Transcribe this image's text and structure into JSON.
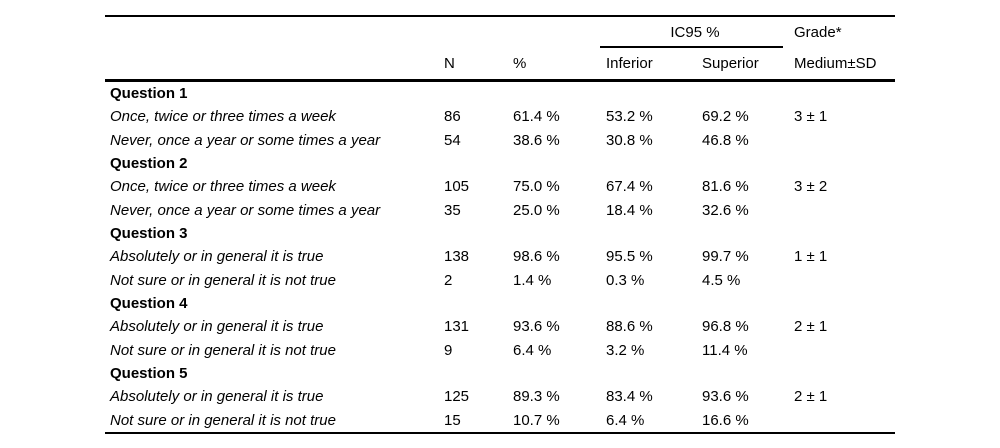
{
  "page_bg": "#ffffff",
  "text_color": "#000000",
  "rule_color": "#000000",
  "table": {
    "header": {
      "ic95_label": "IC95 %",
      "grade_label": "Grade*",
      "n_label": "N",
      "pct_label": "%",
      "inferior_label": "Inferior",
      "superior_label": "Superior",
      "medium_sd_label": "Medium±SD"
    },
    "sections": [
      {
        "question": "Question 1",
        "rows": [
          {
            "label": "Once, twice or three times a week",
            "n": "86",
            "pct": "61.4 %",
            "inferior": "53.2 %",
            "superior": "69.2 %",
            "grade": "3 ± 1"
          },
          {
            "label": "Never, once a year or some times a year",
            "n": "54",
            "pct": "38.6 %",
            "inferior": "30.8 %",
            "superior": "46.8 %",
            "grade": ""
          }
        ]
      },
      {
        "question": "Question 2",
        "rows": [
          {
            "label": "Once, twice or three times a week",
            "n": "105",
            "pct": "75.0 %",
            "inferior": "67.4 %",
            "superior": "81.6 %",
            "grade": "3 ± 2"
          },
          {
            "label": "Never, once a year or some times a year",
            "n": "35",
            "pct": "25.0 %",
            "inferior": "18.4 %",
            "superior": "32.6 %",
            "grade": ""
          }
        ]
      },
      {
        "question": "Question 3",
        "rows": [
          {
            "label": "Absolutely or in general it is true",
            "n": "138",
            "pct": "98.6 %",
            "inferior": "95.5 %",
            "superior": "99.7 %",
            "grade": "1 ± 1"
          },
          {
            "label": "Not sure or in general it is not true",
            "n": "2",
            "pct": "1.4 %",
            "inferior": "0.3 %",
            "superior": "4.5 %",
            "grade": ""
          }
        ]
      },
      {
        "question": "Question 4",
        "rows": [
          {
            "label": "Absolutely or in general it is true",
            "n": "131",
            "pct": "93.6 %",
            "inferior": "88.6 %",
            "superior": "96.8 %",
            "grade": "2 ± 1"
          },
          {
            "label": "Not sure or in general it is not true",
            "n": "9",
            "pct": "6.4 %",
            "inferior": "3.2 %",
            "superior": "11.4 %",
            "grade": ""
          }
        ]
      },
      {
        "question": "Question 5",
        "rows": [
          {
            "label": "Absolutely or in general it is true",
            "n": "125",
            "pct": "89.3 %",
            "inferior": "83.4 %",
            "superior": "93.6 %",
            "grade": "2 ± 1"
          },
          {
            "label": "Not sure or in general it is not true",
            "n": "15",
            "pct": "10.7 %",
            "inferior": "6.4 %",
            "superior": "16.6 %",
            "grade": ""
          }
        ]
      }
    ]
  }
}
